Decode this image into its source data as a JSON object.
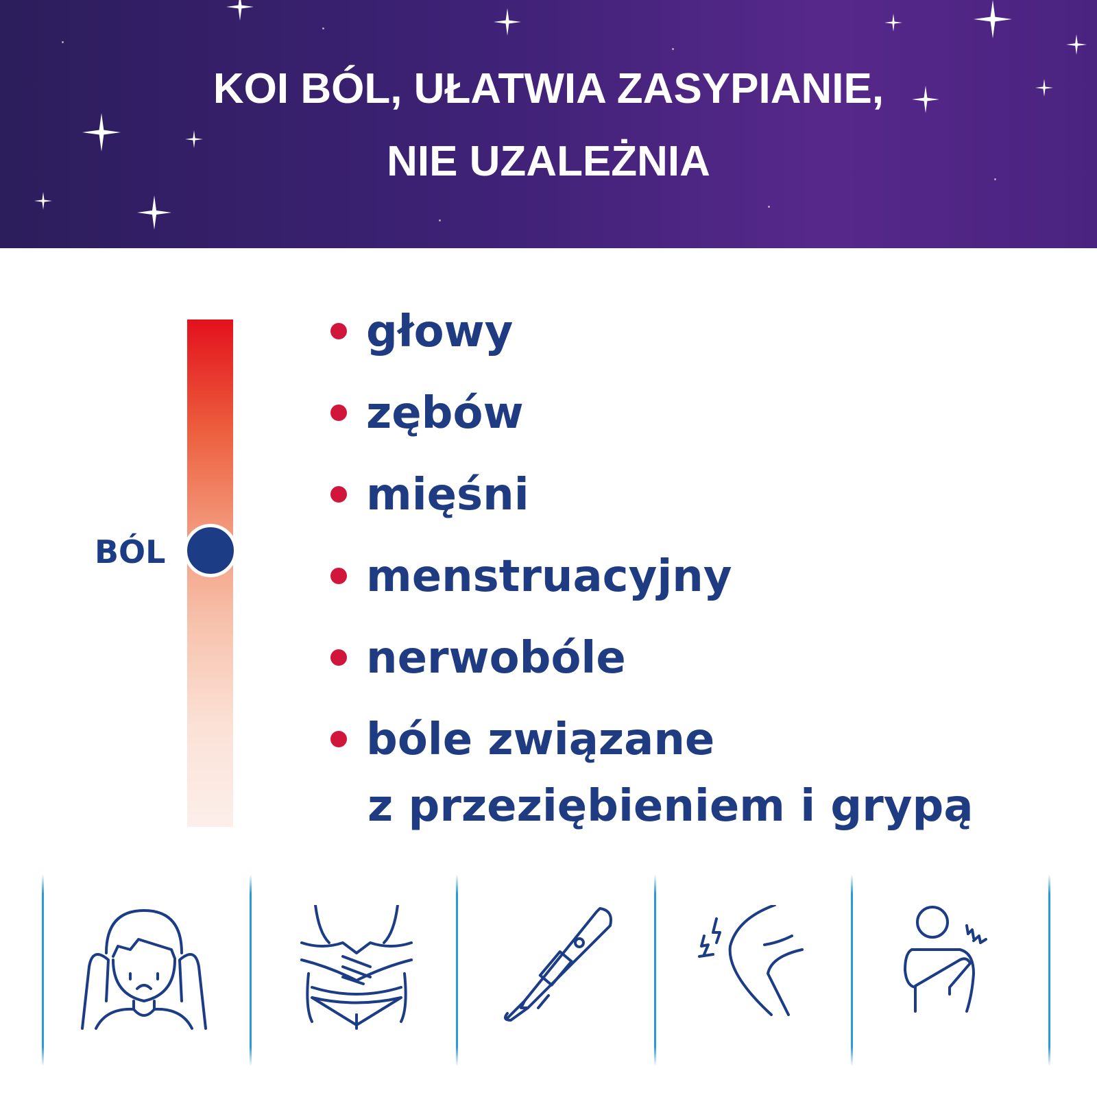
{
  "banner": {
    "line1": "KOI BÓL, UŁATWIA ZASYPIANIE,",
    "line2": "NIE UZALEŻNIA"
  },
  "scale": {
    "label": "BÓL",
    "level_percent": 55
  },
  "list": [
    "głowy",
    "zębów",
    "mięśni",
    "menstruacyjny",
    "nerwobóle",
    "bóle związane",
    "z przeziębieniem i grypą"
  ],
  "icons": [
    "headache-icon",
    "stomach-pain-icon",
    "thermometer-icon",
    "knee-pain-icon",
    "shoulder-pain-icon"
  ],
  "colors": {
    "banner": "#3f2277",
    "text": "#1f3b82",
    "bullet": "#d0163a",
    "knob": "#1c3d86",
    "separator": "#2a9ad6"
  }
}
